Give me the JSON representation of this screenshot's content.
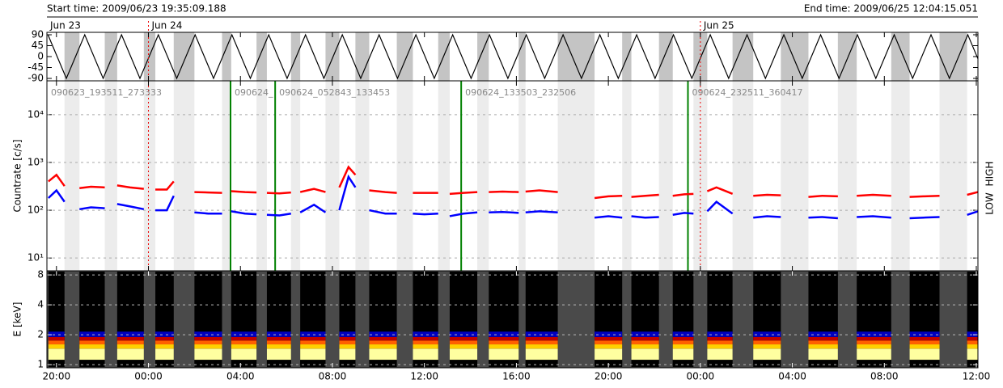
{
  "header": {
    "start": "Start time: 2009/06/23 19:35:09.188",
    "end": "End time: 2009/06/25 12:04:15.051"
  },
  "chart_data": [
    {
      "type": "line",
      "xlim": [
        -0.415,
        40.07
      ],
      "ylim": [
        -100,
        100
      ],
      "yticks": [
        90,
        45,
        0,
        -45,
        -90
      ],
      "color": "#000000",
      "day_labels": [
        {
          "text": "Jun 23",
          "x": -0.415
        },
        {
          "text": "Jun 24",
          "x": 4
        },
        {
          "text": "Jun 25",
          "x": 28
        }
      ],
      "x": [
        -0.37,
        0.43,
        1.23,
        2.03,
        2.83,
        3.63,
        4.43,
        5.23,
        6.03,
        6.83,
        7.63,
        8.43,
        9.23,
        10.03,
        10.83,
        11.63,
        12.43,
        13.23,
        14.03,
        14.83,
        15.63,
        16.43,
        17.23,
        18.03,
        18.83,
        19.63,
        20.43,
        21.23,
        22.03,
        22.83,
        23.63,
        24.43,
        25.23,
        26.03,
        26.83,
        27.63,
        28.43,
        29.23,
        30.03,
        30.83,
        31.63,
        32.43,
        33.23,
        34.03,
        34.83,
        35.63,
        36.43,
        37.23,
        38.03,
        38.83,
        39.63,
        40.07
      ],
      "values": [
        90,
        -90,
        90,
        -90,
        90,
        -90,
        90,
        -90,
        90,
        -90,
        90,
        -90,
        90,
        -90,
        90,
        -90,
        90,
        -90,
        90,
        -90,
        90,
        -90,
        90,
        -90,
        90,
        -90,
        90,
        -90,
        90,
        -90,
        90,
        -90,
        90,
        -90,
        90,
        -90,
        90,
        -90,
        90,
        -90,
        90,
        -90,
        90,
        -90,
        90,
        -90,
        90,
        -90,
        90,
        -90,
        90,
        -9
      ]
    },
    {
      "type": "line",
      "ylabel": "Countrate [c/s]",
      "log_y": true,
      "grid": true,
      "xlim": [
        -0.415,
        40.07
      ],
      "ylim": [
        5.4,
        51000
      ],
      "yticks": [
        {
          "value": 10,
          "label": "10¹"
        },
        {
          "value": 100,
          "label": "10²"
        },
        {
          "value": 1000,
          "label": "10³"
        },
        {
          "value": 10000,
          "label": "10⁴"
        }
      ],
      "annotations": [
        {
          "text": "090623_193511_273333",
          "x": -0.415
        },
        {
          "text": "090624_",
          "x": 7.57
        },
        {
          "text": "090624_052843_133453",
          "x": 9.51
        },
        {
          "text": "090624_133503_232506",
          "x": 17.6
        },
        {
          "text": "090624_232511_360417",
          "x": 27.46
        }
      ],
      "x": [
        -0.35,
        0,
        0.35,
        0.68,
        1.0,
        1.5,
        2.1,
        2.4,
        2.64,
        3.2,
        3.8,
        4.05,
        4.3,
        4.8,
        5.1,
        5.55,
        6.0,
        6.6,
        7.2,
        7.4,
        7.6,
        8.2,
        8.7,
        8.9,
        9.15,
        9.7,
        10.2,
        10.4,
        10.6,
        11.2,
        11.7,
        12.0,
        12.3,
        12.7,
        13.0,
        13.3,
        13.6,
        14.3,
        14.8,
        15.15,
        15.5,
        16.0,
        16.6,
        16.85,
        17.1,
        17.7,
        18.3,
        18.55,
        18.8,
        19.4,
        20.1,
        20.25,
        20.4,
        21.0,
        21.8,
        22.6,
        23.4,
        24.0,
        24.6,
        24.8,
        25.0,
        25.6,
        26.2,
        26.5,
        26.8,
        27.3,
        27.7,
        28.0,
        28.3,
        28.7,
        29.4,
        29.85,
        30.3,
        30.9,
        31.5,
        32.1,
        32.7,
        33.3,
        33.98,
        34.4,
        34.8,
        35.5,
        36.3,
        36.7,
        37.1,
        37.7,
        38.4,
        39.0,
        39.6,
        40.07
      ],
      "series": [
        {
          "name": "LOW",
          "color": "#ff0000",
          "values": [
            400,
            550,
            320,
            null,
            290,
            310,
            300,
            null,
            330,
            300,
            280,
            null,
            270,
            270,
            400,
            null,
            240,
            235,
            230,
            null,
            250,
            240,
            235,
            null,
            230,
            225,
            235,
            null,
            240,
            280,
            240,
            null,
            300,
            800,
            550,
            null,
            260,
            240,
            230,
            null,
            230,
            230,
            230,
            null,
            220,
            230,
            240,
            null,
            240,
            245,
            240,
            null,
            245,
            260,
            240,
            null,
            180,
            195,
            200,
            null,
            190,
            200,
            210,
            null,
            200,
            215,
            220,
            null,
            250,
            300,
            220,
            null,
            200,
            210,
            205,
            null,
            190,
            200,
            195,
            null,
            200,
            210,
            200,
            null,
            190,
            195,
            200,
            null,
            210,
            240
          ]
        },
        {
          "name": "HIGH",
          "color": "#0000ff",
          "values": [
            180,
            260,
            150,
            null,
            105,
            115,
            110,
            null,
            135,
            120,
            105,
            null,
            100,
            100,
            200,
            null,
            90,
            85,
            85,
            null,
            95,
            85,
            82,
            null,
            80,
            78,
            85,
            null,
            90,
            130,
            90,
            null,
            100,
            500,
            300,
            null,
            100,
            85,
            85,
            null,
            85,
            82,
            85,
            null,
            75,
            85,
            90,
            null,
            90,
            92,
            88,
            null,
            90,
            95,
            90,
            null,
            70,
            75,
            70,
            null,
            75,
            70,
            72,
            null,
            80,
            88,
            85,
            null,
            95,
            150,
            85,
            null,
            70,
            75,
            72,
            null,
            70,
            72,
            68,
            null,
            72,
            75,
            70,
            null,
            68,
            70,
            72,
            null,
            80,
            95
          ]
        }
      ]
    },
    {
      "type": "heatmap",
      "ylabel": "E [keV]",
      "log_y": true,
      "grid": true,
      "xlim": [
        -0.415,
        40.07
      ],
      "ylim": [
        0.93,
        8.8
      ],
      "yticks": [
        1,
        2,
        4,
        8
      ],
      "xticks": [
        {
          "value": 0,
          "label": "20:00"
        },
        {
          "value": 4,
          "label": "00:00"
        },
        {
          "value": 8,
          "label": "04:00"
        },
        {
          "value": 12,
          "label": "08:00"
        },
        {
          "value": 16,
          "label": "12:00"
        },
        {
          "value": 20,
          "label": "16:00"
        },
        {
          "value": 24,
          "label": "20:00"
        },
        {
          "value": 28,
          "label": "00:00"
        },
        {
          "value": 32,
          "label": "04:00"
        },
        {
          "value": 36,
          "label": "08:00"
        },
        {
          "value": 40,
          "label": "12:00"
        }
      ]
    }
  ]
}
